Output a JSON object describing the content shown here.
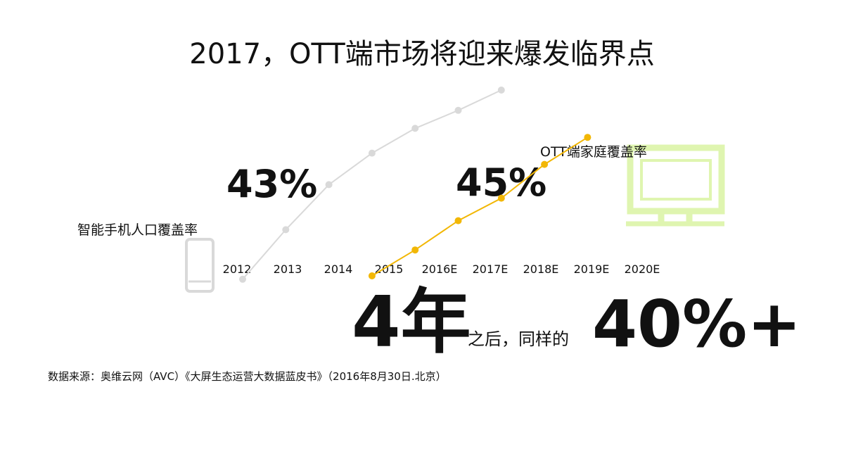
{
  "chart_data": {
    "type": "line",
    "title": "2017，OTT端市场将迎来爆发临界点",
    "categories": [
      "2012",
      "2013",
      "2014",
      "2015",
      "2016E",
      "2017E",
      "2018E",
      "2019E",
      "2020E"
    ],
    "series": [
      {
        "name": "智能手机人口覆盖率",
        "color": "#d9d9d9",
        "values": [
          1,
          23,
          43,
          57,
          68,
          76,
          85,
          null,
          null
        ]
      },
      {
        "name": "OTT端家庭覆盖率",
        "color": "#f2b705",
        "values": [
          null,
          null,
          null,
          2.5,
          14,
          27,
          37,
          52,
          64
        ]
      }
    ],
    "ylim": [
      0,
      100
    ],
    "annotations": [
      "43%",
      "45%",
      "4年",
      "之后，同样的",
      "40%+"
    ],
    "source": "数据来源：奥维云网（AVC）《大屏生态运营大数据蓝皮书》（2016年8月30日.北京）"
  }
}
